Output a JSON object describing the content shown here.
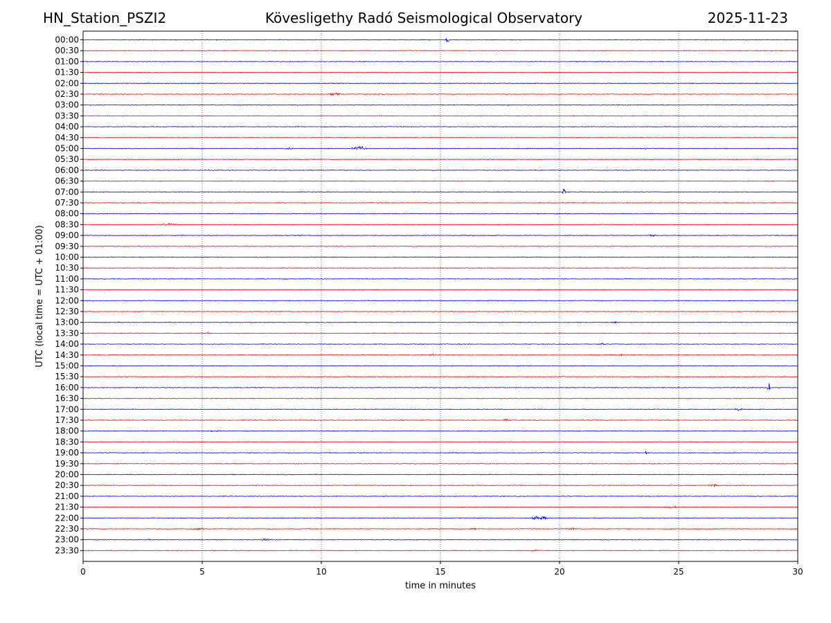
{
  "header": {
    "station": "HN_Station_PSZI2",
    "observatory": "Kövesligethy Radó Seismological Observatory",
    "date": "2025-11-23"
  },
  "colors": {
    "even_rows": "#0000ff",
    "odd_rows": "#ff0000",
    "grid": "#000000"
  },
  "chart_data": {
    "type": "line",
    "title": "Kövesligethy Radó Seismological Observatory",
    "xlabel": "time in minutes",
    "ylabel": "UTC (local time = UTC + 01:00)",
    "xlim": [
      0,
      30
    ],
    "x_ticks": [
      "0",
      "5",
      "10",
      "15",
      "20",
      "25",
      "30"
    ],
    "grid": "vertical dotted lines at 5, 10, 15, 20, 25",
    "rows": [
      "00:00",
      "00:30",
      "01:00",
      "01:30",
      "02:00",
      "02:30",
      "03:00",
      "03:30",
      "04:00",
      "04:30",
      "05:00",
      "05:30",
      "06:00",
      "06:30",
      "07:00",
      "07:30",
      "08:00",
      "08:30",
      "09:00",
      "09:30",
      "10:00",
      "10:30",
      "11:00",
      "11:30",
      "12:00",
      "12:30",
      "13:00",
      "13:30",
      "14:00",
      "14:30",
      "15:00",
      "15:30",
      "16:00",
      "16:30",
      "17:00",
      "17:30",
      "18:00",
      "18:30",
      "19:00",
      "19:30",
      "20:00",
      "20:30",
      "21:00",
      "21:30",
      "22:00",
      "22:30",
      "23:00",
      "23:30"
    ],
    "events": [
      {
        "row": "00:00",
        "minute": 15.2,
        "duration": 0.3,
        "amp": 6
      },
      {
        "row": "02:30",
        "minute": 10.3,
        "duration": 0.9,
        "amp": 3.5
      },
      {
        "row": "05:00",
        "minute": 8.3,
        "duration": 1.0,
        "amp": 2.5
      },
      {
        "row": "05:00",
        "minute": 11.2,
        "duration": 1.2,
        "amp": 5
      },
      {
        "row": "05:00",
        "minute": 23.5,
        "duration": 0.3,
        "amp": 2
      },
      {
        "row": "05:30",
        "minute": 28.2,
        "duration": 0.6,
        "amp": 2
      },
      {
        "row": "07:00",
        "minute": 20.1,
        "duration": 0.25,
        "amp": 7
      },
      {
        "row": "08:30",
        "minute": 3.1,
        "duration": 1.8,
        "amp": 2
      },
      {
        "row": "09:00",
        "minute": 23.6,
        "duration": 0.9,
        "amp": 1.8
      },
      {
        "row": "12:00",
        "minute": 29.9,
        "duration": 0.1,
        "amp": 4
      },
      {
        "row": "13:00",
        "minute": 22.0,
        "duration": 1.0,
        "amp": 1.8
      },
      {
        "row": "13:30",
        "minute": 5.1,
        "duration": 0.4,
        "amp": 3
      },
      {
        "row": "13:30",
        "minute": 25.8,
        "duration": 0.15,
        "amp": 6
      },
      {
        "row": "14:00",
        "minute": 21.5,
        "duration": 0.9,
        "amp": 1.8
      },
      {
        "row": "14:30",
        "minute": 14.5,
        "duration": 0.5,
        "amp": 2.2
      },
      {
        "row": "14:30",
        "minute": 22.4,
        "duration": 0.6,
        "amp": 2
      },
      {
        "row": "15:00",
        "minute": 1.2,
        "duration": 0.5,
        "amp": 2
      },
      {
        "row": "16:00",
        "minute": 28.7,
        "duration": 0.25,
        "amp": 14
      },
      {
        "row": "16:30",
        "minute": 9.6,
        "duration": 0.6,
        "amp": 1.5
      },
      {
        "row": "17:00",
        "minute": 27.3,
        "duration": 0.8,
        "amp": 3
      },
      {
        "row": "17:30",
        "minute": 17.5,
        "duration": 0.8,
        "amp": 2.2
      },
      {
        "row": "18:00",
        "minute": 5.2,
        "duration": 1.0,
        "amp": 2
      },
      {
        "row": "19:00",
        "minute": 23.6,
        "duration": 0.1,
        "amp": 4
      },
      {
        "row": "20:30",
        "minute": 26.1,
        "duration": 1.2,
        "amp": 2.5
      },
      {
        "row": "21:30",
        "minute": 24.3,
        "duration": 1.3,
        "amp": 2.5
      },
      {
        "row": "22:00",
        "minute": 18.7,
        "duration": 1.5,
        "amp": 4
      },
      {
        "row": "22:30",
        "minute": 4.5,
        "duration": 1.0,
        "amp": 3
      },
      {
        "row": "22:30",
        "minute": 16.2,
        "duration": 0.6,
        "amp": 2.5
      },
      {
        "row": "22:30",
        "minute": 20.2,
        "duration": 1.0,
        "amp": 2.5
      },
      {
        "row": "23:00",
        "minute": 2.6,
        "duration": 0.6,
        "amp": 2
      },
      {
        "row": "23:00",
        "minute": 7.4,
        "duration": 0.9,
        "amp": 2.5
      },
      {
        "row": "23:30",
        "minute": 18.7,
        "duration": 0.8,
        "amp": 1.8
      }
    ]
  }
}
